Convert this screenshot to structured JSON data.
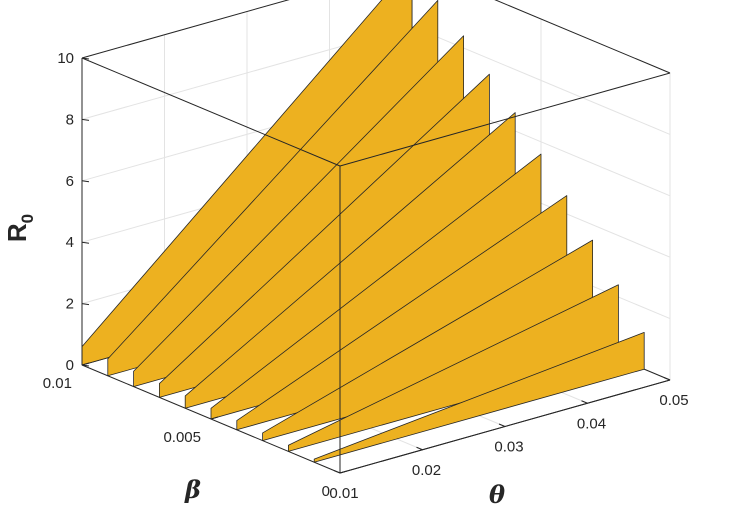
{
  "chart_data": {
    "type": "surface3d",
    "title": "",
    "xlabel": "θ",
    "ylabel": "β",
    "zlabel": "R",
    "zlabel_subscript": "0",
    "xlim": [
      0.01,
      0.05
    ],
    "ylim": [
      0,
      0.01
    ],
    "zlim": [
      0,
      10
    ],
    "xticks": [
      0.01,
      0.02,
      0.03,
      0.04,
      0.05
    ],
    "xtick_labels": [
      "0.01",
      "0.02",
      "0.03",
      "0.04",
      "0.05"
    ],
    "yticks": [
      0,
      0.005,
      0.01
    ],
    "ytick_labels": [
      "0",
      "0.005",
      "0.01"
    ],
    "zticks": [
      0,
      2,
      4,
      6,
      8,
      10
    ],
    "ztick_labels": [
      "0",
      "2",
      "4",
      "6",
      "8",
      "10"
    ],
    "grid": true,
    "box": true,
    "surface_color": "#EDB120",
    "edge_color": "#262626",
    "slices_beta": [
      0,
      0.001,
      0.002,
      0.003,
      0.004,
      0.005,
      0.006,
      0.007,
      0.008,
      0.009,
      0.01
    ],
    "series": [
      {
        "beta": 0.01,
        "theta": [
          0.01,
          0.05
        ],
        "r0": [
          0.6,
          10.0
        ]
      },
      {
        "beta": 0.009,
        "theta": [
          0.01,
          0.05
        ],
        "r0": [
          0.55,
          9.2
        ]
      },
      {
        "beta": 0.008,
        "theta": [
          0.01,
          0.05
        ],
        "r0": [
          0.5,
          8.4
        ]
      },
      {
        "beta": 0.007,
        "theta": [
          0.01,
          0.05
        ],
        "r0": [
          0.45,
          7.5
        ]
      },
      {
        "beta": 0.006,
        "theta": [
          0.01,
          0.05
        ],
        "r0": [
          0.4,
          6.6
        ]
      },
      {
        "beta": 0.005,
        "theta": [
          0.01,
          0.05
        ],
        "r0": [
          0.35,
          5.6
        ]
      },
      {
        "beta": 0.004,
        "theta": [
          0.01,
          0.05
        ],
        "r0": [
          0.3,
          4.6
        ]
      },
      {
        "beta": 0.003,
        "theta": [
          0.01,
          0.05
        ],
        "r0": [
          0.25,
          3.5
        ]
      },
      {
        "beta": 0.002,
        "theta": [
          0.01,
          0.05
        ],
        "r0": [
          0.2,
          2.4
        ]
      },
      {
        "beta": 0.001,
        "theta": [
          0.01,
          0.05
        ],
        "r0": [
          0.1,
          1.2
        ]
      },
      {
        "beta": 0.0,
        "theta": [
          0.01,
          0.05
        ],
        "r0": [
          0.0,
          0.0
        ]
      }
    ]
  }
}
